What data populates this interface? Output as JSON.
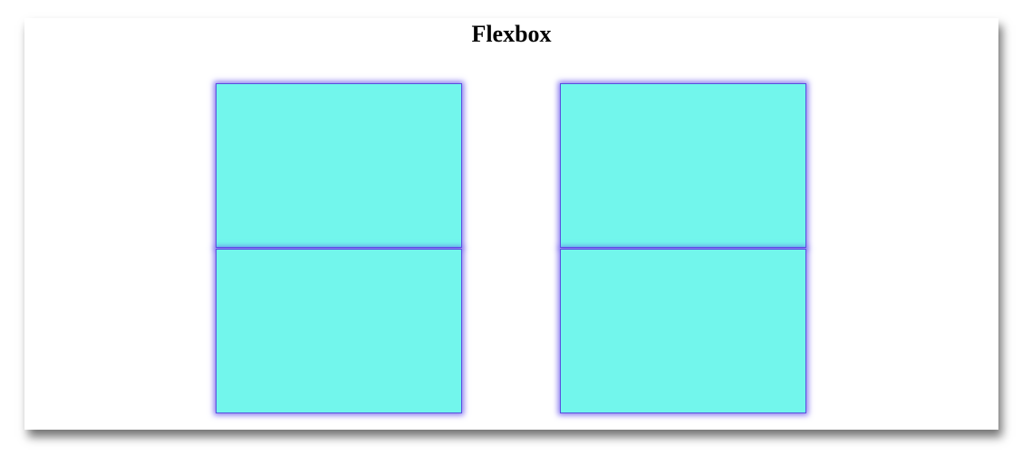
{
  "page": {
    "title": "Flexbox"
  },
  "colors": {
    "box_fill": "#72f6ec",
    "box_border": "#5a4ee0"
  },
  "columns": [
    {
      "boxes": 2
    },
    {
      "boxes": 2
    }
  ]
}
